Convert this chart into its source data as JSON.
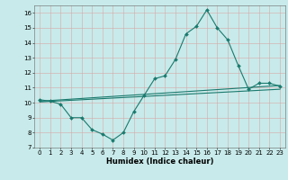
{
  "x": [
    0,
    1,
    2,
    3,
    4,
    5,
    6,
    7,
    8,
    9,
    10,
    11,
    12,
    13,
    14,
    15,
    16,
    17,
    18,
    19,
    20,
    21,
    22,
    23
  ],
  "line1": [
    10.2,
    10.1,
    9.9,
    9.0,
    9.0,
    8.2,
    7.9,
    7.5,
    8.0,
    9.4,
    10.5,
    11.6,
    11.8,
    12.9,
    14.6,
    15.1,
    16.2,
    15.0,
    14.2,
    12.5,
    10.9,
    11.3,
    11.3,
    11.1
  ],
  "line2_x": [
    0,
    23
  ],
  "line2_y": [
    10.1,
    11.15
  ],
  "line3_x": [
    0,
    23
  ],
  "line3_y": [
    10.05,
    10.9
  ],
  "color": "#1a7a6e",
  "bg_color": "#c8eaea",
  "grid_color": "#d8a8a8",
  "xlim": [
    -0.5,
    23.5
  ],
  "ylim": [
    7,
    16.5
  ],
  "yticks": [
    7,
    8,
    9,
    10,
    11,
    12,
    13,
    14,
    15,
    16
  ],
  "xticks": [
    0,
    1,
    2,
    3,
    4,
    5,
    6,
    7,
    8,
    9,
    10,
    11,
    12,
    13,
    14,
    15,
    16,
    17,
    18,
    19,
    20,
    21,
    22,
    23
  ],
  "xlabel": "Humidex (Indice chaleur)",
  "xlabel_fontsize": 6,
  "tick_fontsize": 5,
  "marker": "D",
  "markersize": 2,
  "linewidth": 0.8
}
